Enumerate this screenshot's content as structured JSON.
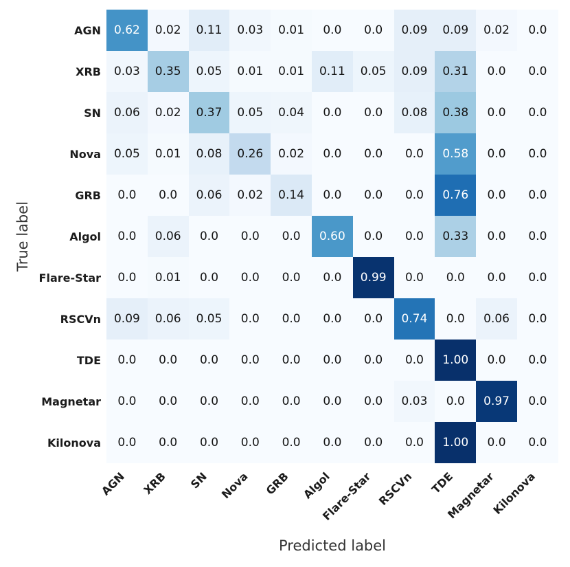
{
  "chart_data": {
    "type": "heatmap",
    "title": "",
    "xlabel": "Predicted label",
    "ylabel": "True label",
    "x_tick_labels": [
      "AGN",
      "XRB",
      "SN",
      "Nova",
      "GRB",
      "Algol",
      "Flare-Star",
      "RSCVn",
      "TDE",
      "Magnetar",
      "Kilonova"
    ],
    "y_tick_labels": [
      "AGN",
      "XRB",
      "SN",
      "Nova",
      "GRB",
      "Algol",
      "Flare-Star",
      "RSCVn",
      "TDE",
      "Magnetar",
      "Kilonova"
    ],
    "matrix": [
      [
        0.62,
        0.02,
        0.11,
        0.03,
        0.01,
        0.0,
        0.0,
        0.09,
        0.09,
        0.02,
        0.0
      ],
      [
        0.03,
        0.35,
        0.05,
        0.01,
        0.01,
        0.11,
        0.05,
        0.09,
        0.31,
        0.0,
        0.0
      ],
      [
        0.06,
        0.02,
        0.37,
        0.05,
        0.04,
        0.0,
        0.0,
        0.08,
        0.38,
        0.0,
        0.0
      ],
      [
        0.05,
        0.01,
        0.08,
        0.26,
        0.02,
        0.0,
        0.0,
        0.0,
        0.58,
        0.0,
        0.0
      ],
      [
        0.0,
        0.0,
        0.06,
        0.02,
        0.14,
        0.0,
        0.0,
        0.0,
        0.76,
        0.0,
        0.0
      ],
      [
        0.0,
        0.06,
        0.0,
        0.0,
        0.0,
        0.6,
        0.0,
        0.0,
        0.33,
        0.0,
        0.0
      ],
      [
        0.0,
        0.01,
        0.0,
        0.0,
        0.0,
        0.0,
        0.99,
        0.0,
        0.0,
        0.0,
        0.0
      ],
      [
        0.09,
        0.06,
        0.05,
        0.0,
        0.0,
        0.0,
        0.0,
        0.74,
        0.0,
        0.06,
        0.0
      ],
      [
        0.0,
        0.0,
        0.0,
        0.0,
        0.0,
        0.0,
        0.0,
        0.0,
        1.0,
        0.0,
        0.0
      ],
      [
        0.0,
        0.0,
        0.0,
        0.0,
        0.0,
        0.0,
        0.0,
        0.03,
        0.0,
        0.97,
        0.0
      ],
      [
        0.0,
        0.0,
        0.0,
        0.0,
        0.0,
        0.0,
        0.0,
        0.0,
        1.0,
        0.0,
        0.0
      ]
    ],
    "value_range": [
      0,
      1
    ],
    "grid": false,
    "legend": "none",
    "colormap": "Blues",
    "colormap_stops": [
      "#f7fbff",
      "#deebf7",
      "#c6dbef",
      "#9ecae1",
      "#6baed6",
      "#4292c6",
      "#2171b5",
      "#08519c",
      "#08306b"
    ],
    "text_color_threshold": 0.5,
    "cell_text_colors": {
      "dark": "#141414",
      "light": "#ffffff"
    },
    "zero_display": "0.0"
  }
}
